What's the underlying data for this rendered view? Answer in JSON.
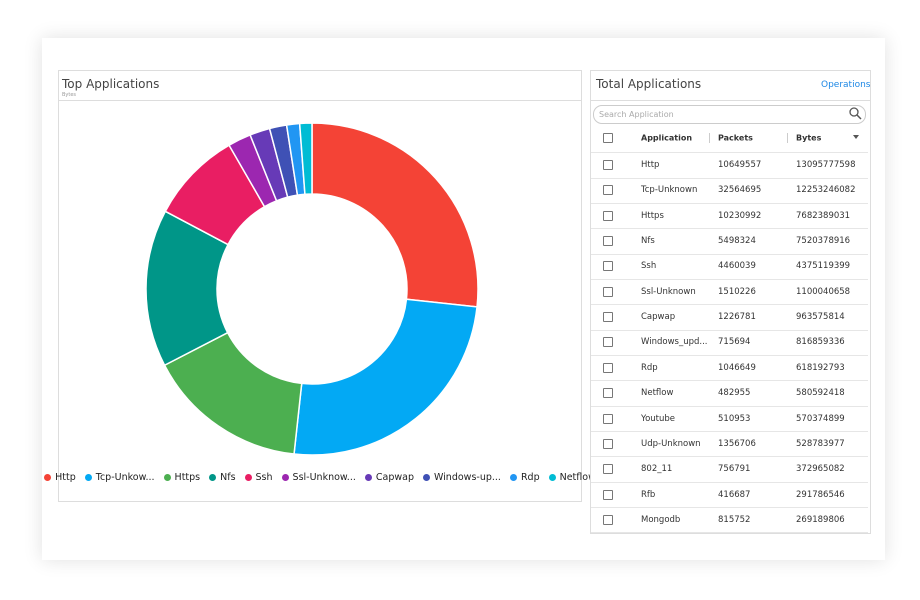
{
  "chart_data": {
    "type": "pie",
    "donut": true,
    "title": "Top Applications",
    "subtitle": "Bytes",
    "categories": [
      "Http",
      "Tcp-Unkow...",
      "Https",
      "Nfs",
      "Ssh",
      "Ssl-Unknow...",
      "Capwap",
      "Windows-up...",
      "Rdp",
      "Netflow"
    ],
    "values": [
      13095777598,
      12253246082,
      7682389031,
      7520378916,
      4375119399,
      1100040658,
      963575814,
      816859336,
      618192793,
      580592418
    ],
    "colors": [
      "#f44336",
      "#03a9f4",
      "#4caf50",
      "#009688",
      "#e91e63",
      "#9c27b0",
      "#673ab7",
      "#3f51b5",
      "#2196f3",
      "#00bcd4"
    ],
    "legend": "bottom"
  },
  "table": {
    "title": "Total Applications",
    "action": "Operations",
    "search_placeholder": "Search Application",
    "columns": [
      "Application",
      "Packets",
      "Bytes"
    ],
    "rows": [
      [
        "Http",
        10649557,
        13095777598
      ],
      [
        "Tcp-Unknown",
        32564695,
        12253246082
      ],
      [
        "Https",
        10230992,
        7682389031
      ],
      [
        "Nfs",
        5498324,
        7520378916
      ],
      [
        "Ssh",
        4460039,
        4375119399
      ],
      [
        "Ssl-Unknown",
        1510226,
        1100040658
      ],
      [
        "Capwap",
        1226781,
        963575814
      ],
      [
        "Windows_upd...",
        715694,
        816859336
      ],
      [
        "Rdp",
        1046649,
        618192793
      ],
      [
        "Netflow",
        482955,
        580592418
      ],
      [
        "Youtube",
        510953,
        570374899
      ],
      [
        "Udp-Unknown",
        1356706,
        528783977
      ],
      [
        "802_11",
        756791,
        372965082
      ],
      [
        "Rfb",
        416687,
        291786546
      ],
      [
        "Mongodb",
        815752,
        269189806
      ]
    ]
  }
}
